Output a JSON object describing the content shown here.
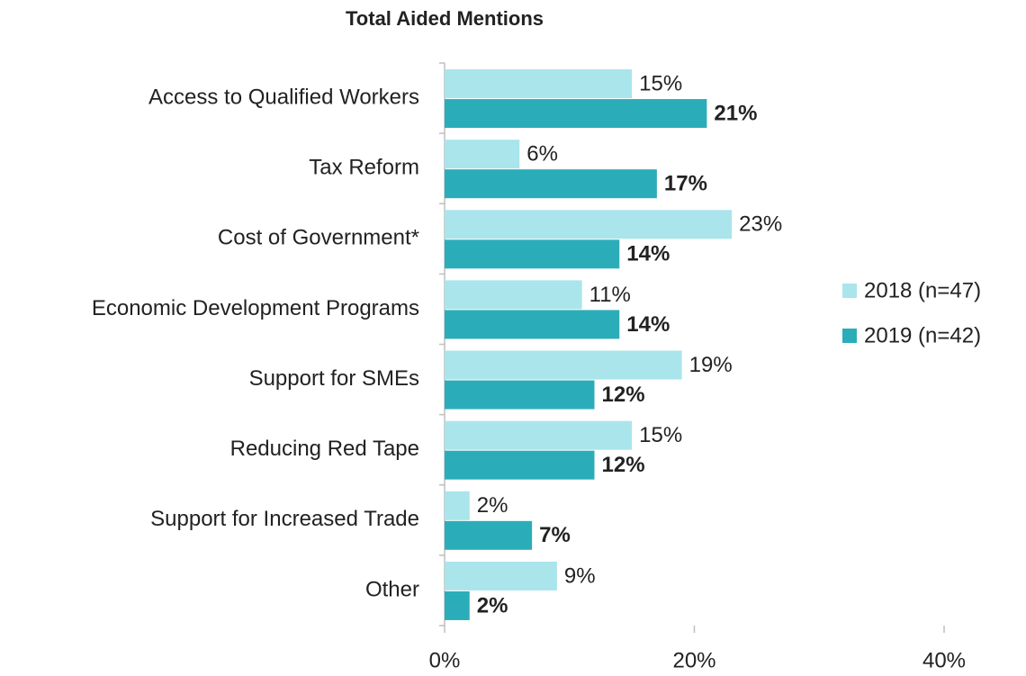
{
  "chart_data": {
    "type": "hbar",
    "title": "Total Aided Mentions",
    "categories": [
      "Access to Qualified Workers",
      "Tax Reform",
      "Cost of Government*",
      "Economic Development Programs",
      "Support for SMEs",
      "Reducing Red Tape",
      "Support for Increased Trade",
      "Other"
    ],
    "series": [
      {
        "name": "2018 (n=47)",
        "color": "#a9e5eb",
        "values": [
          15,
          6,
          23,
          11,
          19,
          15,
          2,
          9
        ],
        "value_labels": [
          "15%",
          "6%",
          "23%",
          "11%",
          "19%",
          "15%",
          "2%",
          "9%"
        ]
      },
      {
        "name": "2019 (n=42)",
        "color": "#2badb9",
        "values": [
          21,
          17,
          14,
          14,
          12,
          12,
          7,
          2
        ],
        "value_labels": [
          "21%",
          "17%",
          "14%",
          "14%",
          "12%",
          "12%",
          "7%",
          "2%"
        ]
      }
    ],
    "xlim": [
      0,
      40
    ],
    "xticks": [
      {
        "value": 0,
        "label": "0%"
      },
      {
        "value": 20,
        "label": "20%"
      },
      {
        "value": 40,
        "label": "40%"
      }
    ],
    "legend": "right",
    "grid": false
  }
}
